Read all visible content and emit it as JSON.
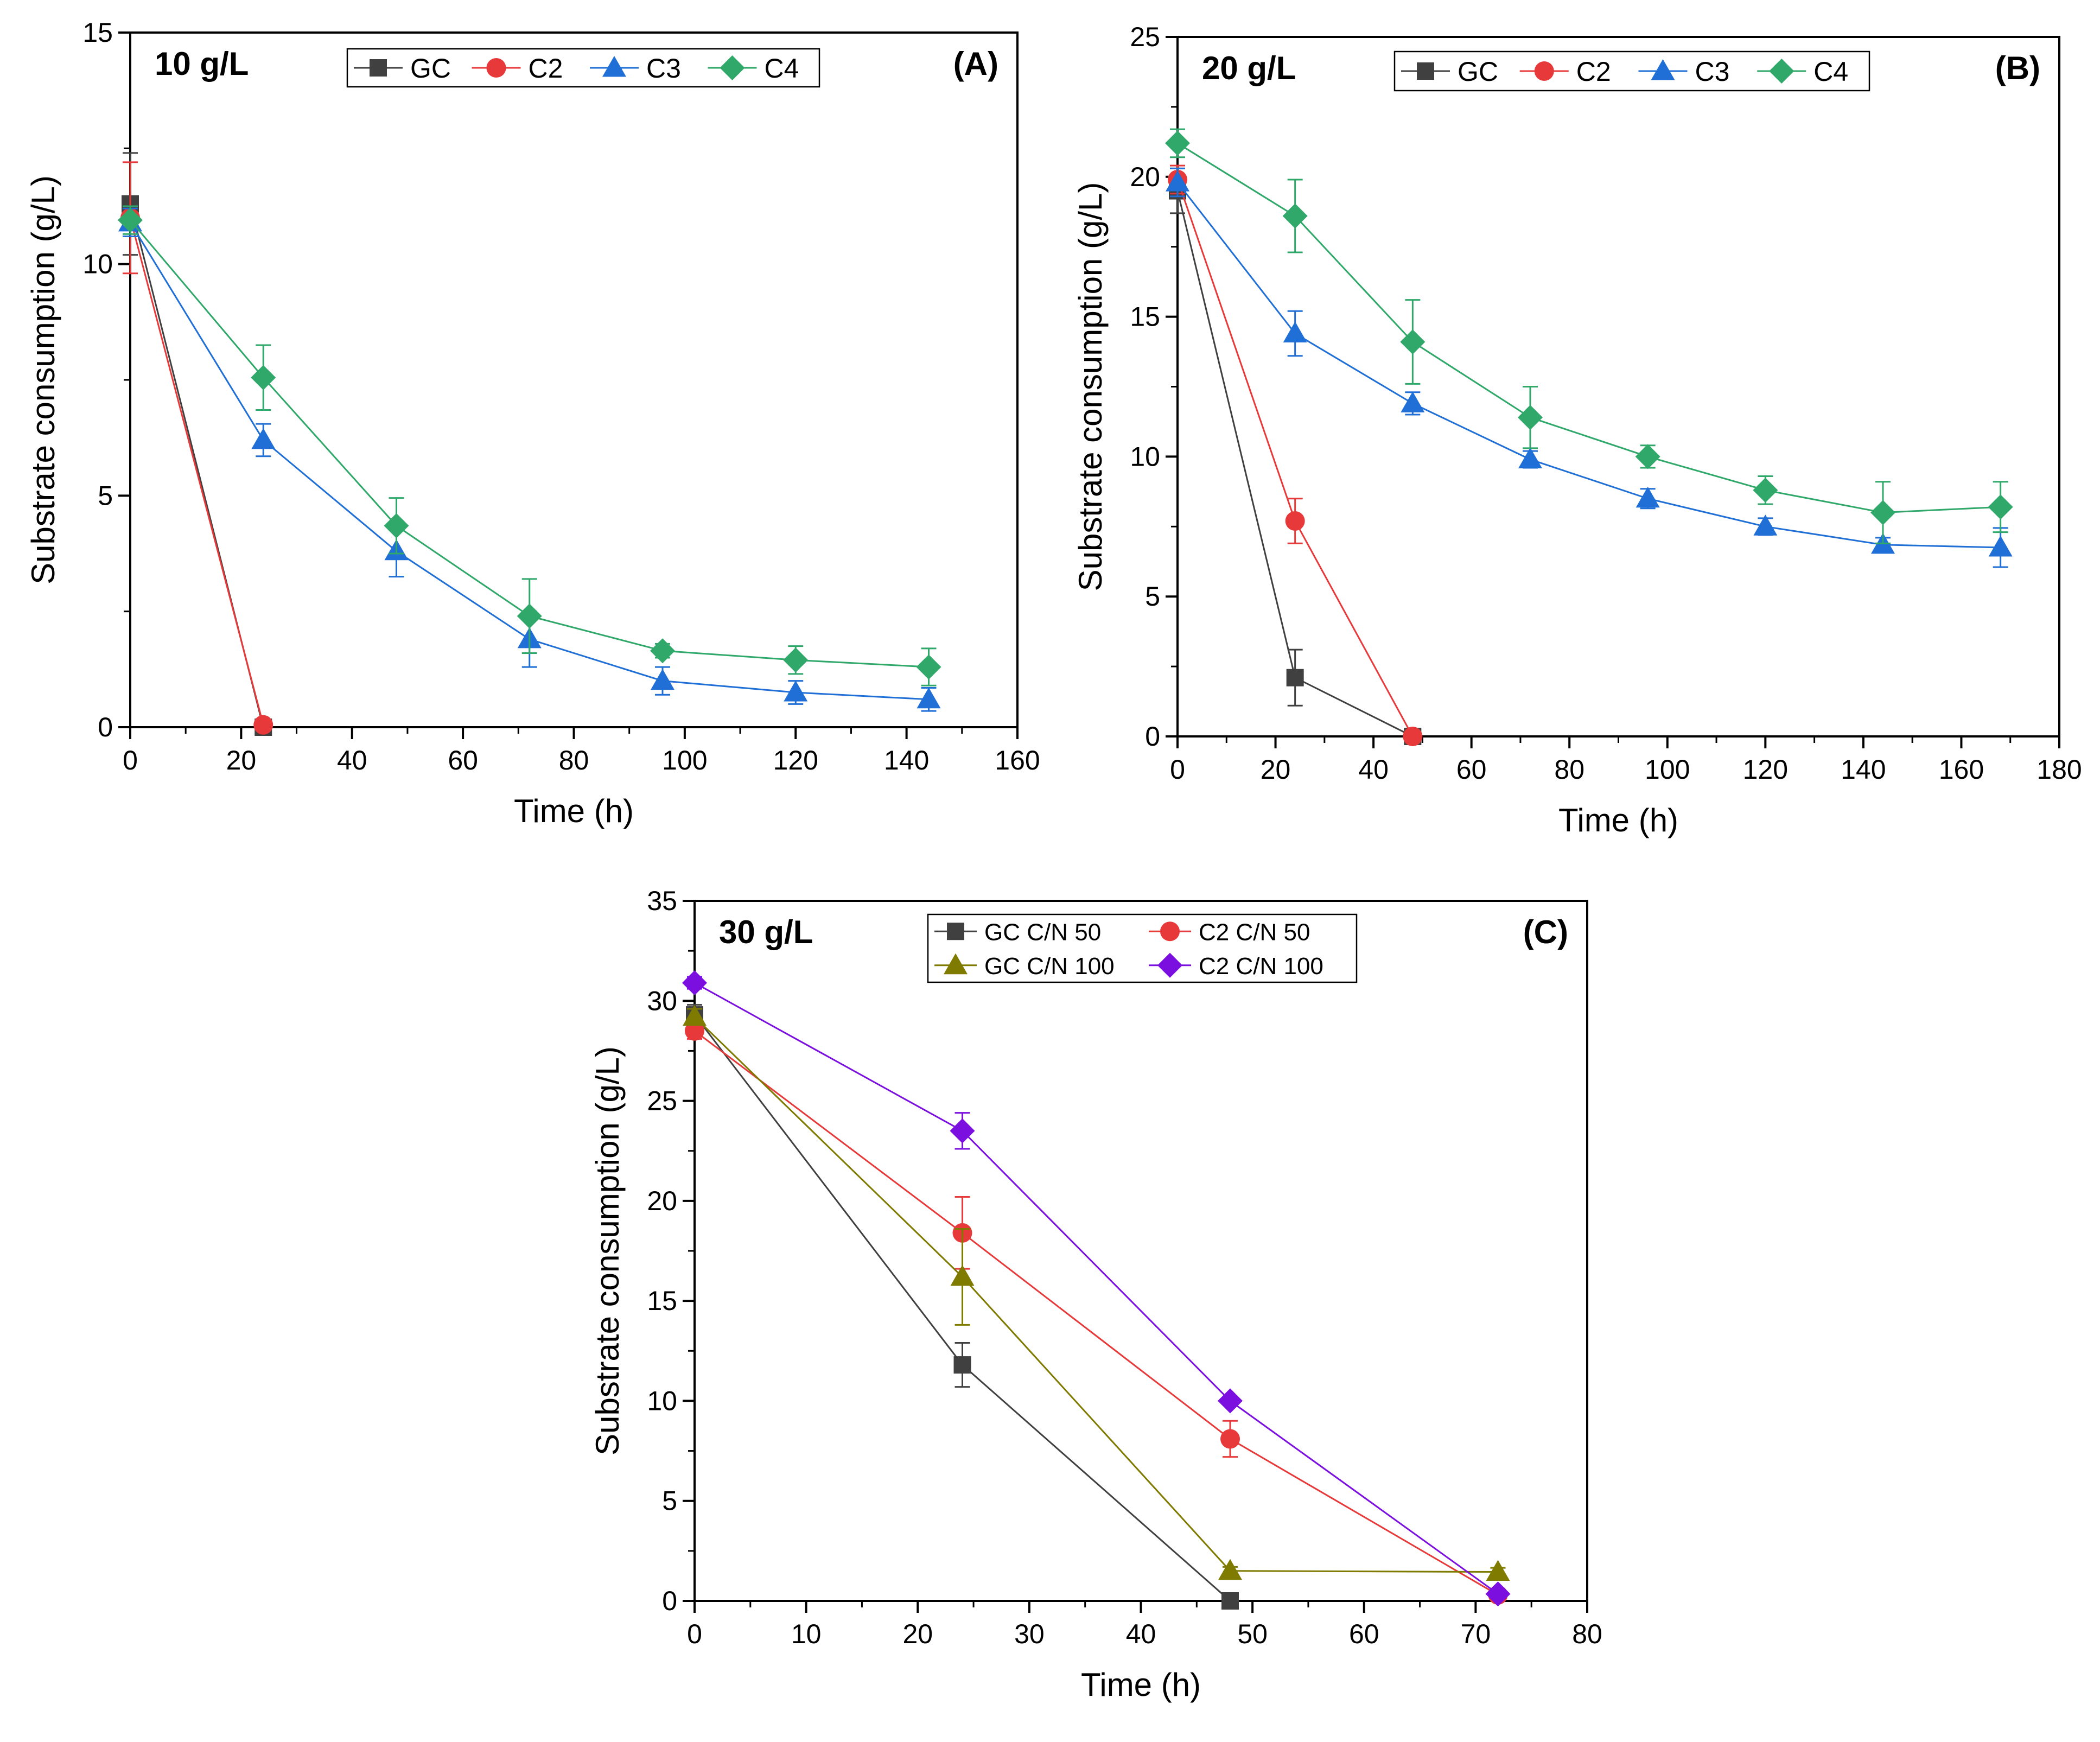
{
  "chart_data": [
    {
      "type": "line",
      "panel": "(A)",
      "title": "10 g/L",
      "xlabel": "Time (h)",
      "ylabel": "Substrate consumption (g/L)",
      "xlim": [
        0,
        160
      ],
      "ylim": [
        0,
        15
      ],
      "xticks": [
        0,
        20,
        40,
        60,
        80,
        100,
        120,
        140,
        160
      ],
      "yticks": [
        0,
        5,
        10,
        15
      ],
      "legend_position": "top",
      "legend_rows": 1,
      "series": [
        {
          "name": "GC",
          "color": "#404040",
          "marker": "square",
          "x": [
            0,
            24
          ],
          "y": [
            11.3,
            0.0
          ],
          "err": [
            1.1,
            0.0
          ]
        },
        {
          "name": "C2",
          "color": "#e8393a",
          "marker": "circle",
          "x": [
            0,
            24
          ],
          "y": [
            11.0,
            0.05
          ],
          "err": [
            1.2,
            0.0
          ]
        },
        {
          "name": "C3",
          "color": "#1f6fd6",
          "marker": "triangle",
          "x": [
            0,
            24,
            48,
            72,
            96,
            120,
            144
          ],
          "y": [
            10.9,
            6.2,
            3.8,
            1.9,
            1.0,
            0.75,
            0.6
          ],
          "err": [
            0.3,
            0.35,
            0.55,
            0.6,
            0.3,
            0.25,
            0.25
          ]
        },
        {
          "name": "C4",
          "color": "#2fa86a",
          "marker": "diamond",
          "x": [
            0,
            24,
            48,
            72,
            96,
            120,
            144
          ],
          "y": [
            10.95,
            7.55,
            4.35,
            2.4,
            1.65,
            1.45,
            1.3
          ],
          "err": [
            0.3,
            0.7,
            0.6,
            0.8,
            0.15,
            0.3,
            0.4
          ]
        }
      ]
    },
    {
      "type": "line",
      "panel": "(B)",
      "title": "20 g/L",
      "xlabel": "Time (h)",
      "ylabel": "Substrate consumption (g/L)",
      "xlim": [
        0,
        180
      ],
      "ylim": [
        0,
        25
      ],
      "xticks": [
        0,
        20,
        40,
        60,
        80,
        100,
        120,
        140,
        160,
        180
      ],
      "yticks": [
        0,
        5,
        10,
        15,
        20,
        25
      ],
      "legend_position": "top",
      "legend_rows": 1,
      "series": [
        {
          "name": "GC",
          "color": "#404040",
          "marker": "square",
          "x": [
            0,
            24,
            48
          ],
          "y": [
            19.5,
            2.1,
            0.0
          ],
          "err": [
            0.8,
            1.0,
            0.0
          ]
        },
        {
          "name": "C2",
          "color": "#e8393a",
          "marker": "circle",
          "x": [
            0,
            24,
            48
          ],
          "y": [
            19.9,
            7.7,
            0.0
          ],
          "err": [
            0.5,
            0.8,
            0.0
          ]
        },
        {
          "name": "C3",
          "color": "#1f6fd6",
          "marker": "triangle",
          "x": [
            0,
            24,
            48,
            72,
            96,
            120,
            144,
            168
          ],
          "y": [
            19.8,
            14.4,
            11.9,
            9.9,
            8.5,
            7.5,
            6.85,
            6.75
          ],
          "err": [
            0.5,
            0.8,
            0.4,
            0.3,
            0.35,
            0.3,
            0.25,
            0.7
          ]
        },
        {
          "name": "C4",
          "color": "#2fa86a",
          "marker": "diamond",
          "x": [
            0,
            24,
            48,
            72,
            96,
            120,
            144,
            168
          ],
          "y": [
            21.2,
            18.6,
            14.1,
            11.4,
            10.0,
            8.8,
            8.0,
            8.2
          ],
          "err": [
            0.5,
            1.3,
            1.5,
            1.1,
            0.4,
            0.5,
            1.1,
            0.9
          ]
        }
      ]
    },
    {
      "type": "line",
      "panel": "(C)",
      "title": "30 g/L",
      "xlabel": "Time (h)",
      "ylabel": "Substrate consumption (g/L)",
      "xlim": [
        0,
        80
      ],
      "ylim": [
        0,
        35
      ],
      "xticks": [
        0,
        10,
        20,
        30,
        40,
        50,
        60,
        70,
        80
      ],
      "yticks": [
        0,
        5,
        10,
        15,
        20,
        25,
        30,
        35
      ],
      "legend_position": "top",
      "legend_rows": 2,
      "series": [
        {
          "name": "GC C/N 50",
          "color": "#404040",
          "marker": "square",
          "x": [
            0,
            24,
            48
          ],
          "y": [
            29.3,
            11.8,
            0.0
          ],
          "err": [
            0.5,
            1.1,
            0.0
          ]
        },
        {
          "name": "C2 C/N 50",
          "color": "#e8393a",
          "marker": "circle",
          "x": [
            0,
            24,
            48,
            72
          ],
          "y": [
            28.5,
            18.4,
            8.1,
            0.3
          ],
          "err": [
            0.4,
            1.8,
            0.9,
            0.2
          ]
        },
        {
          "name": "GC C/N 100",
          "color": "#7f7a00",
          "marker": "triangle",
          "x": [
            0,
            24,
            48,
            72
          ],
          "y": [
            29.2,
            16.2,
            1.5,
            1.45
          ],
          "err": [
            0.4,
            2.4,
            0.2,
            0.2
          ]
        },
        {
          "name": "C2 C/N 100",
          "color": "#7b0fe0",
          "marker": "diamond",
          "x": [
            0,
            24,
            48,
            72
          ],
          "y": [
            30.9,
            23.5,
            10.0,
            0.35
          ],
          "err": [
            0.3,
            0.9,
            0.2,
            0.2
          ]
        }
      ]
    }
  ]
}
